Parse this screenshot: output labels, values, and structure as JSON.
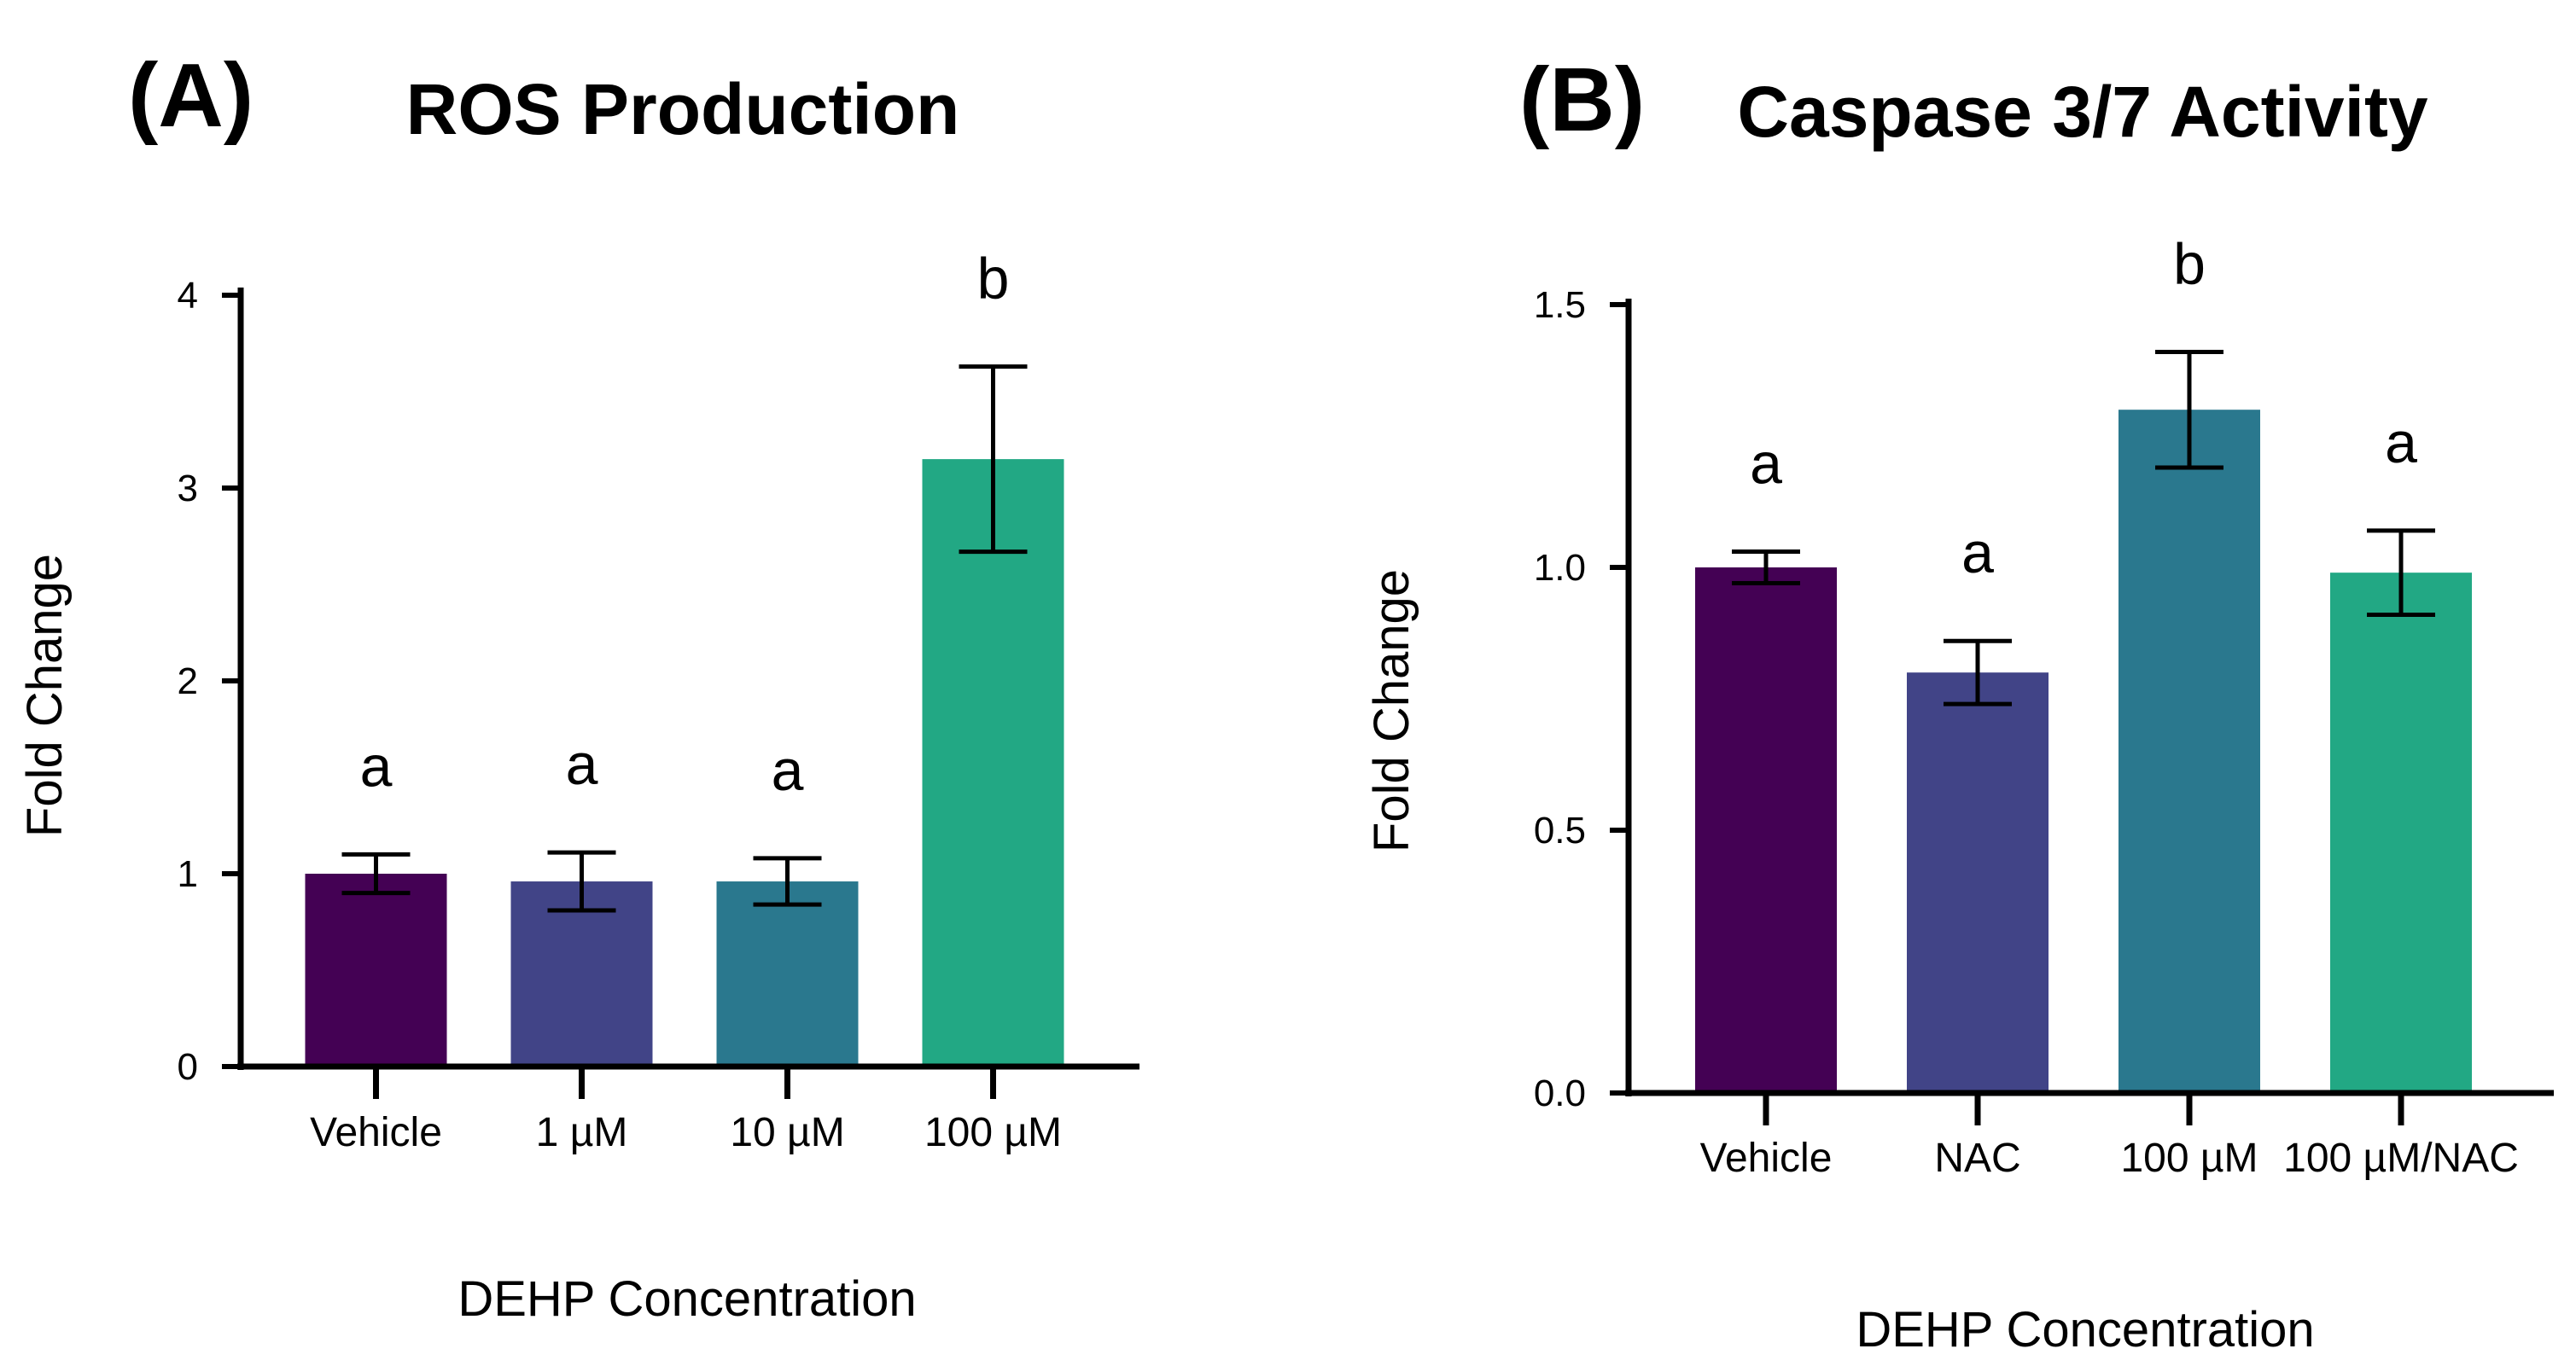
{
  "chart_data": [
    {
      "type": "bar",
      "panel_label": "(A)",
      "title": "ROS Production",
      "xlabel": "DEHP Concentration",
      "ylabel": "Fold Change",
      "categories": [
        "Vehicle",
        "1 µM",
        "10 µM",
        "100 µM"
      ],
      "values": [
        1.0,
        0.96,
        0.96,
        3.15
      ],
      "errors": [
        0.1,
        0.15,
        0.12,
        0.48
      ],
      "significance": [
        "a",
        "a",
        "a",
        "b"
      ],
      "colors": [
        "#440154",
        "#414487",
        "#2a788e",
        "#22a884"
      ],
      "ylim": [
        0,
        4
      ],
      "yticks": [
        0,
        1,
        2,
        3,
        4
      ],
      "ytick_labels": [
        "0",
        "1",
        "2",
        "3",
        "4"
      ],
      "grid": false,
      "legend": "none"
    },
    {
      "type": "bar",
      "panel_label": "(B)",
      "title": "Caspase 3/7  Activity",
      "xlabel": "DEHP Concentration",
      "ylabel": "Fold Change",
      "categories": [
        "Vehicle",
        "NAC",
        "100 µM",
        "100 µM/NAC"
      ],
      "values": [
        1.0,
        0.8,
        1.3,
        0.99
      ],
      "errors": [
        0.03,
        0.06,
        0.11,
        0.08
      ],
      "significance": [
        "a",
        "a",
        "b",
        "a"
      ],
      "colors": [
        "#440154",
        "#414487",
        "#2a788e",
        "#22a884"
      ],
      "ylim": [
        0,
        1.5
      ],
      "yticks": [
        0,
        0.5,
        1.0,
        1.5
      ],
      "ytick_labels": [
        "0.0",
        "0.5",
        "1.0",
        "1.5"
      ],
      "grid": false,
      "legend": "none"
    }
  ]
}
